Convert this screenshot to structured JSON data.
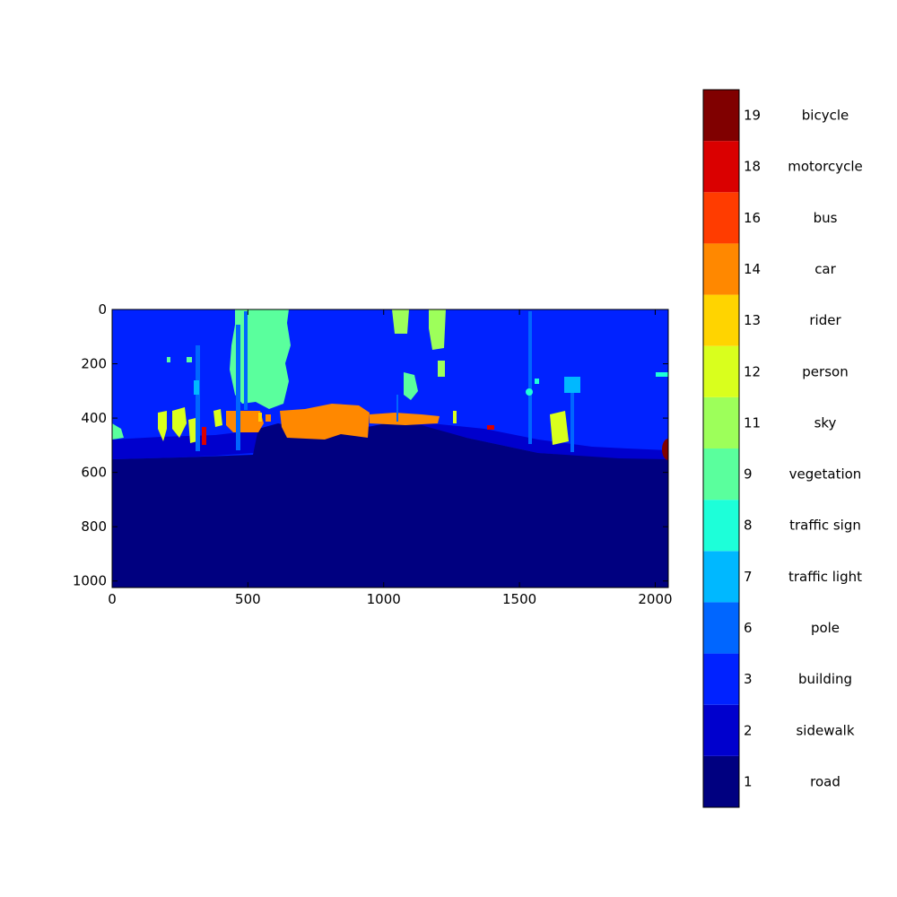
{
  "chart_data": {
    "type": "heatmap",
    "title": "",
    "xlabel": "",
    "ylabel": "",
    "xlim": [
      0,
      2048
    ],
    "ylim": [
      1024,
      0
    ],
    "x_ticks": [
      0,
      500,
      1000,
      1500,
      2000
    ],
    "y_ticks": [
      0,
      200,
      400,
      600,
      800,
      1000
    ],
    "grid": false,
    "colorbar": {
      "placement": "right",
      "classes": [
        {
          "id": "1",
          "label": "road",
          "color": "#000080"
        },
        {
          "id": "2",
          "label": "sidewalk",
          "color": "#0000cd"
        },
        {
          "id": "3",
          "label": "building",
          "color": "#0022ff"
        },
        {
          "id": "6",
          "label": "pole",
          "color": "#0066ff"
        },
        {
          "id": "7",
          "label": "traffic light",
          "color": "#00b8ff"
        },
        {
          "id": "8",
          "label": "traffic sign",
          "color": "#1dffd9"
        },
        {
          "id": "9",
          "label": "vegetation",
          "color": "#5aff9d"
        },
        {
          "id": "11",
          "label": "sky",
          "color": "#9dff5a"
        },
        {
          "id": "12",
          "label": "person",
          "color": "#d9ff1d"
        },
        {
          "id": "13",
          "label": "rider",
          "color": "#ffd400"
        },
        {
          "id": "14",
          "label": "car",
          "color": "#ff8800"
        },
        {
          "id": "16",
          "label": "bus",
          "color": "#ff3c00"
        },
        {
          "id": "18",
          "label": "motorcycle",
          "color": "#da0000"
        },
        {
          "id": "19",
          "label": "bicycle",
          "color": "#800000"
        }
      ]
    }
  }
}
